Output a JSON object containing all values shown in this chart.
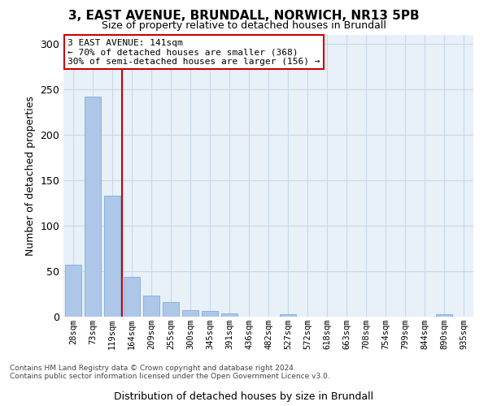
{
  "title_line1": "3, EAST AVENUE, BRUNDALL, NORWICH, NR13 5PB",
  "title_line2": "Size of property relative to detached houses in Brundall",
  "xlabel": "Distribution of detached houses by size in Brundall",
  "ylabel": "Number of detached properties",
  "categories": [
    "28sqm",
    "73sqm",
    "119sqm",
    "164sqm",
    "209sqm",
    "255sqm",
    "300sqm",
    "345sqm",
    "391sqm",
    "436sqm",
    "482sqm",
    "527sqm",
    "572sqm",
    "618sqm",
    "663sqm",
    "708sqm",
    "754sqm",
    "799sqm",
    "844sqm",
    "890sqm",
    "935sqm"
  ],
  "values": [
    57,
    242,
    133,
    44,
    23,
    16,
    7,
    6,
    4,
    0,
    0,
    3,
    0,
    0,
    0,
    0,
    0,
    0,
    0,
    3,
    0
  ],
  "bar_color": "#aec6e8",
  "bar_edge_color": "#7aaedc",
  "grid_color": "#c8d8e8",
  "background_color": "#e8f0f8",
  "vline_x": 2.5,
  "vline_color": "#cc0000",
  "annotation_text": "3 EAST AVENUE: 141sqm\n← 70% of detached houses are smaller (368)\n30% of semi-detached houses are larger (156) →",
  "annotation_box_color": "#cc0000",
  "annotation_text_color": "#000000",
  "footer_line1": "Contains HM Land Registry data © Crown copyright and database right 2024.",
  "footer_line2": "Contains public sector information licensed under the Open Government Licence v3.0.",
  "ylim": [
    0,
    310
  ],
  "yticks": [
    0,
    50,
    100,
    150,
    200,
    250,
    300
  ]
}
